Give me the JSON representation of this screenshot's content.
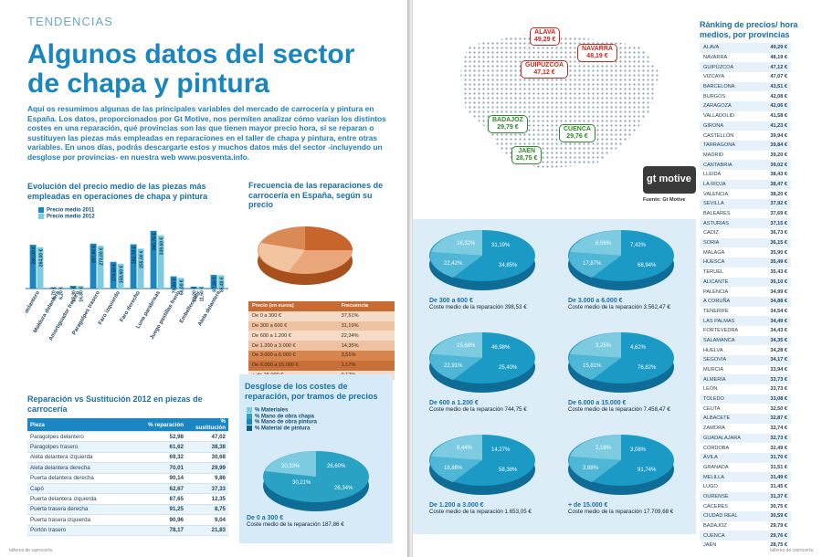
{
  "left": {
    "section": "TENDENCIAS",
    "title": "Algunos datos del sector de chapa y pintura",
    "intro": "Aquí os resumimos algunas de las principales variables del mercado de carrocería y pintura en España. Los datos, proporcionados por Gt Motive, nos permiten analizar cómo varían los distintos costes en una reparación, qué provincias son las que tienen mayor precio hora, si se reparan o sustituyen las piezas más empleadas en reparaciones en el taller de chapa y pintura, entre otras variables. En unos días, podrás descargarte estos y muchos datos más del sector -incluyendo un desglose por provincias- en nuestra web www.posventa.info.",
    "bar_title": "Evolución del precio medio de las piezas más empleadas en operaciones de chapa y pintura",
    "legend": [
      "Precio medio 2011",
      "Precio medio 2012"
    ],
    "freq_title": "Frecuencia de las reparaciones de carrocería en España, según su precio",
    "freq_head": [
      "Precio (en euros)",
      "Frecuencia"
    ],
    "freq_rows": [
      [
        "De 0 a 300 €",
        "37,51%"
      ],
      [
        "De 300 a 600 €",
        "31,19%"
      ],
      [
        "De 600 a 1.200 €",
        "22,34%"
      ],
      [
        "De 1.200 a 3.000 €",
        "14,35%"
      ],
      [
        "De 3.000 a 6.000 €",
        "3,51%"
      ],
      [
        "De 6.000 a 15.000 €",
        "1,17%"
      ],
      [
        "+ de 15.000 €",
        "0,12%"
      ]
    ],
    "rep_title": "Reparación vs Sustitución 2012 en piezas de carrocería",
    "rep_head": [
      "Pieza",
      "% reparación",
      "% sustitución"
    ],
    "rep_rows": [
      [
        "Paragolpes delantero",
        "52,98",
        "47,02"
      ],
      [
        "Paragolpes trasero",
        "61,62",
        "38,38"
      ],
      [
        "Aleta delantera izquierda",
        "69,32",
        "30,68"
      ],
      [
        "Aleta delantera derecha",
        "70,01",
        "29,99"
      ],
      [
        "Puerta delantera derecha",
        "90,14",
        "9,86"
      ],
      [
        "Capó",
        "62,67",
        "37,33"
      ],
      [
        "Puerta delantera izquierda",
        "87,65",
        "12,35"
      ],
      [
        "Puerta trasera derecha",
        "91,25",
        "8,75"
      ],
      [
        "Puerta trasera izquierda",
        "90,96",
        "9,04"
      ],
      [
        "Portón trasero",
        "78,17",
        "21,83"
      ]
    ],
    "desglose_title": "Desglose de los costes de reparación, por tramos de precios",
    "desglose_legend": [
      "% Materiales",
      "% Mano de obra chapa",
      "% Mano de obra pintura",
      "% Material de pintura"
    ],
    "pie_small": {
      "caption": "De 0 a 300 €",
      "sub": "Coste medio de la reparación 187,86 €",
      "labels": [
        "20,33%",
        "26,60%",
        "26,34%",
        "30,21%"
      ]
    },
    "footer": "talleres de carrocería"
  },
  "right": {
    "tags": [
      [
        "ALAVA",
        "49,29 €"
      ],
      [
        "NAVARRA",
        "48,19 €"
      ],
      [
        "GUIPÚZCOA",
        "47,12 €"
      ],
      [
        "BADAJOZ",
        "29,79 €"
      ],
      [
        "CUENCA",
        "29,76 €"
      ],
      [
        "JAÉN",
        "28,75 €"
      ]
    ],
    "source": "Fuente: Gt Motive",
    "logo": "gt motive",
    "rank_title": "Ránking de precios/ hora medios, por provincias",
    "rank": [
      [
        "ALAVA",
        "49,29 €"
      ],
      [
        "NAVARRA",
        "48,19 €"
      ],
      [
        "GUIPÚZCOA",
        "47,12 €"
      ],
      [
        "VIZCAYA",
        "47,07 €"
      ],
      [
        "BARCELONA",
        "43,51 €"
      ],
      [
        "BURGOS",
        "42,08 €"
      ],
      [
        "ZARAGOZA",
        "42,06 €"
      ],
      [
        "VALLADOLID",
        "41,58 €"
      ],
      [
        "GIRONA",
        "41,23 €"
      ],
      [
        "CASTELLÓN",
        "39,94 €"
      ],
      [
        "TARRAGONA",
        "39,84 €"
      ],
      [
        "MADRID",
        "39,20 €"
      ],
      [
        "CANTABRIA",
        "39,02 €"
      ],
      [
        "LLEIDA",
        "38,43 €"
      ],
      [
        "LA RIOJA",
        "38,47 €"
      ],
      [
        "VALENCIA",
        "38,20 €"
      ],
      [
        "SEVILLA",
        "37,92 €"
      ],
      [
        "BALEARES",
        "37,69 €"
      ],
      [
        "ASTURIAS",
        "37,15 €"
      ],
      [
        "CADIZ",
        "36,73 €"
      ],
      [
        "SORIA",
        "36,15 €"
      ],
      [
        "MÁLAGA",
        "35,90 €"
      ],
      [
        "HUESCA",
        "35,49 €"
      ],
      [
        "TERUEL",
        "35,43 €"
      ],
      [
        "ALICANTE",
        "35,10 €"
      ],
      [
        "PALENCIA",
        "34,99 €"
      ],
      [
        "A CORUÑA",
        "34,88 €"
      ],
      [
        "TENERIFE",
        "34,54 €"
      ],
      [
        "LAS PALMAS",
        "34,49 €"
      ],
      [
        "FORTEVEDRA",
        "34,43 €"
      ],
      [
        "SALAMANCA",
        "34,35 €"
      ],
      [
        "HUELVA",
        "34,28 €"
      ],
      [
        "SEGOVIA",
        "34,17 €"
      ],
      [
        "MURCIA",
        "33,94 €"
      ],
      [
        "ALMERÍA",
        "33,73 €"
      ],
      [
        "LEÓN",
        "33,73 €"
      ],
      [
        "TOLEDO",
        "33,08 €"
      ],
      [
        "CEUTA",
        "32,50 €"
      ],
      [
        "ALBACETE",
        "32,87 €"
      ],
      [
        "ZAMORA",
        "32,74 €"
      ],
      [
        "GUADALAJARA",
        "32,73 €"
      ],
      [
        "CÓRDOBA",
        "32,49 €"
      ],
      [
        "ÁVILA",
        "31,70 €"
      ],
      [
        "GRANADA",
        "31,51 €"
      ],
      [
        "MELILLA",
        "31,49 €"
      ],
      [
        "LUGO",
        "31,45 €"
      ],
      [
        "OURENSE",
        "31,37 €"
      ],
      [
        "CÁCERES",
        "30,75 €"
      ],
      [
        "CIUDAD REAL",
        "30,59 €"
      ],
      [
        "BADAJOZ",
        "29,79 €"
      ],
      [
        "CUENCA",
        "29,76 €"
      ],
      [
        "JAÉN",
        "28,75 €"
      ]
    ],
    "pies": [
      {
        "caption": "De 300 a 600 €",
        "sub": "Coste medio de la reparación 398,53 €",
        "labels": [
          "16,32%",
          "31,19%",
          "22,42%",
          "34,85%"
        ]
      },
      {
        "caption": "De 3.000 a 6.000 €",
        "sub": "Coste medio de la reparación 3.562,47 €",
        "labels": [
          "6,06%",
          "7,42%",
          "17,87%",
          "68,94%"
        ]
      },
      {
        "caption": "De 600 a 1.200 €",
        "sub": "Coste medio de la reparación 744,75 €",
        "labels": [
          "15,68%",
          "46,98%",
          "22,91%",
          "25,40%"
        ]
      },
      {
        "caption": "De 6.000 a 15.000 €",
        "sub": "Coste medio de la reparación 7.458,47 €",
        "labels": [
          "3,25%",
          "4,62%",
          "15,81%",
          "76,82%"
        ]
      },
      {
        "caption": "De 1.200 a 3.000 €",
        "sub": "Coste medio de la reparación 1.653,05 €",
        "labels": [
          "8,44%",
          "14,27%",
          "18,88%",
          "58,38%"
        ]
      },
      {
        "caption": "+ de 15.000 €",
        "sub": "Coste medio de la reparación 17.709,68 €",
        "labels": [
          "2,18%",
          "3,08%",
          "3,98%",
          "91,74%"
        ]
      }
    ],
    "footer": "talleres de carrocería"
  },
  "chart_data": [
    {
      "type": "bar",
      "title": "Evolución del precio medio de las piezas más empleadas en operaciones de chapa y pintura",
      "categories": [
        "Paragolpes delantero",
        "Moldura delantera",
        "Amortiguador trasero",
        "Paragolpes trasero",
        "Faro izquierdo",
        "Faro derecho",
        "Luna parabrisas",
        "Juego pastillas freno",
        "Embellecedor",
        "Aleta delantera"
      ],
      "series": [
        {
          "name": "Precio medio 2011",
          "values": [
            280.0,
            6.7,
            17.3,
            287.0,
            170.5,
            282.7,
            368.7,
            78.0,
            12.2,
            87.2
          ]
        },
        {
          "name": "Precio medio 2012",
          "values": [
            264.0,
            6.2,
            16.8,
            273.0,
            158.6,
            255.0,
            339.6,
            68.0,
            11.5,
            85.4
          ]
        }
      ],
      "ylim": [
        0,
        420
      ]
    },
    {
      "type": "pie",
      "title": "Frecuencia de las reparaciones de carrocería en España, según su precio",
      "categories": [
        "De 0 a 300 €",
        "De 300 a 600 €",
        "De 600 a 1.200 €",
        "De 1.200 a 3.000 €",
        "De 3.000 a 6.000 €",
        "De 6.000 a 15.000 €",
        "+ de 15.000 €"
      ],
      "values": [
        37.51,
        31.19,
        22.34,
        14.35,
        3.51,
        1.17,
        0.12
      ]
    }
  ],
  "colors": {
    "blue": "#1a86c0",
    "teal": "#2aa2c4",
    "light": "#7ccbe0",
    "orange": "#d9834a",
    "red": "#c7281e",
    "green": "#2f8a2a"
  }
}
